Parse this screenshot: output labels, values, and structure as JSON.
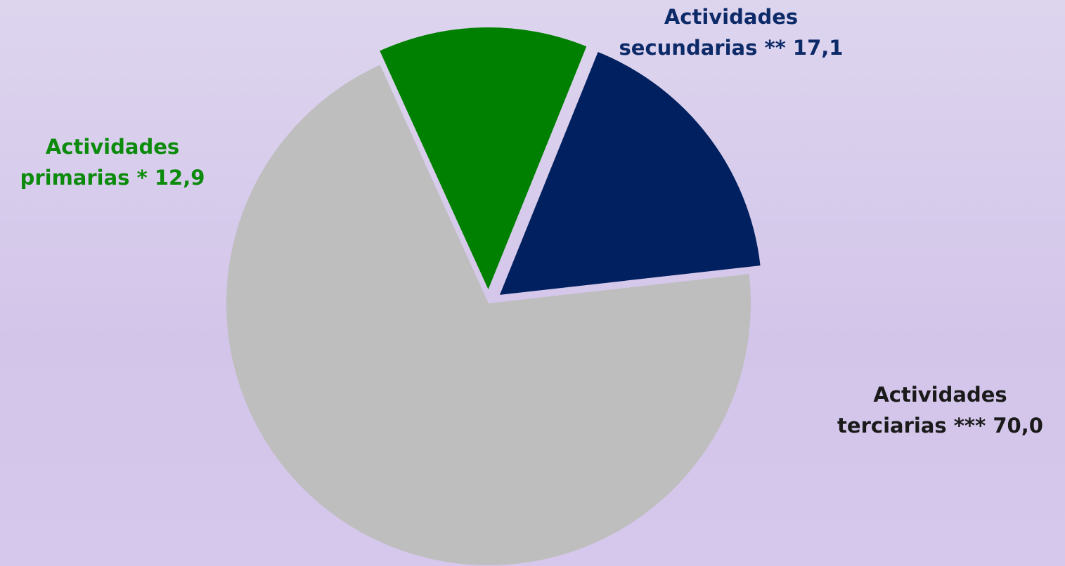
{
  "chart_data": {
    "type": "pie",
    "slices": [
      {
        "label": "Actividades",
        "sublabel": "secundarias",
        "marker": "**",
        "value": 17.1,
        "value_text": "17,1",
        "color": "#00205f"
      },
      {
        "label": "Actividades",
        "sublabel": "terciarias",
        "marker": "***",
        "value": 70.0,
        "value_text": "70,0",
        "color": "#bebebe"
      },
      {
        "label": "Actividades",
        "sublabel": "primarias",
        "marker": "*",
        "value": 12.9,
        "value_text": "12,9",
        "color": "#008000"
      }
    ],
    "label_colors": {
      "secundarias": "#0d2a68",
      "terciarias": "#1a1a1a",
      "primarias": "#0b8a0b"
    },
    "exploded": [
      "secundarias",
      "primarias"
    ],
    "legend": "none"
  }
}
